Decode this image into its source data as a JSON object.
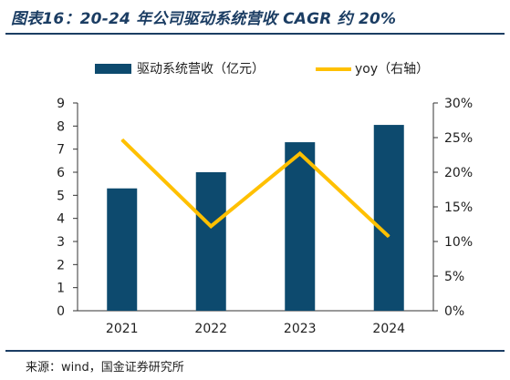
{
  "header": {
    "title": "图表16：20-24 年公司驱动系统营收 CAGR 约 20%"
  },
  "footer": {
    "source": "来源：wind，国金证券研究所"
  },
  "colors": {
    "bar": "#0d4a6e",
    "line": "#ffc000",
    "rule": "#1b3d63",
    "axis": "#333333"
  },
  "chart_data": {
    "type": "bar",
    "categories": [
      "2021",
      "2022",
      "2023",
      "2024"
    ],
    "series": [
      {
        "name": "驱动系统营收（亿元）",
        "type": "bar",
        "axis": "left",
        "values": [
          5.3,
          6.0,
          7.3,
          8.05
        ]
      },
      {
        "name": "yoy（右轴）",
        "type": "line",
        "axis": "right",
        "values": [
          24.7,
          12.2,
          22.7,
          10.7
        ]
      }
    ],
    "y_left": {
      "min": 0,
      "max": 9,
      "ticks": [
        "0",
        "1",
        "2",
        "3",
        "4",
        "5",
        "6",
        "7",
        "8",
        "9"
      ]
    },
    "y_right": {
      "min": 0,
      "max": 30,
      "ticks": [
        "0%",
        "5%",
        "10%",
        "15%",
        "20%",
        "25%",
        "30%"
      ]
    },
    "legend": "top",
    "grid": false
  }
}
